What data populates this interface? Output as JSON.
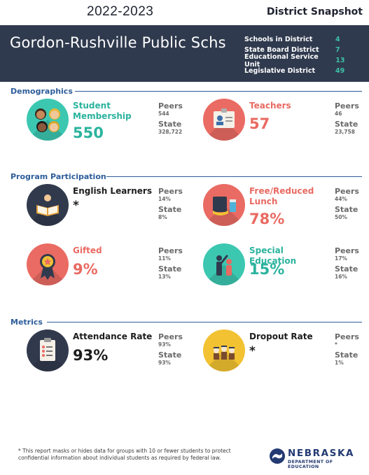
{
  "header": {
    "year": "2022-2023",
    "snapshot_label": "District Snapshot"
  },
  "district": {
    "name": "Gordon-Rushville Public Schs",
    "info": [
      {
        "label": "Schools in District",
        "value": "4"
      },
      {
        "label": "State Board District",
        "value": "7"
      },
      {
        "label": "Educational Service Unit",
        "value": "13"
      },
      {
        "label": "Legislative District",
        "value": "49"
      }
    ]
  },
  "sections": {
    "demographics": "Demographics",
    "program": "Program Participation",
    "metrics": "Metrics"
  },
  "metrics": {
    "student_membership": {
      "title": "Student Membership",
      "value": "550",
      "peers_label": "Peers",
      "peers": "544",
      "state_label": "State",
      "state": "328,722"
    },
    "teachers": {
      "title": "Teachers",
      "value": "57",
      "peers_label": "Peers",
      "peers": "46",
      "state_label": "State",
      "state": "23,758"
    },
    "english_learners": {
      "title": "English Learners",
      "value": "*",
      "peers_label": "Peers",
      "peers": "14%",
      "state_label": "State",
      "state": "8%"
    },
    "free_reduced_lunch": {
      "title": "Free/Reduced Lunch",
      "value": "78%",
      "peers_label": "Peers",
      "peers": "44%",
      "state_label": "State",
      "state": "50%"
    },
    "gifted": {
      "title": "Gifted",
      "value": "9%",
      "peers_label": "Peers",
      "peers": "11%",
      "state_label": "State",
      "state": "13%"
    },
    "special_education": {
      "title": "Special Education",
      "value": "15%",
      "peers_label": "Peers",
      "peers": "17%",
      "state_label": "State",
      "state": "16%"
    },
    "attendance_rate": {
      "title": "Attendance Rate",
      "value": "93%",
      "peers_label": "Peers",
      "peers": "93%",
      "state_label": "State",
      "state": "93%"
    },
    "dropout_rate": {
      "title": "Dropout Rate",
      "value": "*",
      "peers_label": "Peers",
      "peers": "*",
      "state_label": "State",
      "state": "1%"
    }
  },
  "icons": {
    "student_membership": "students-icon",
    "teachers": "id-badge-icon",
    "english_learners": "open-book-icon",
    "free_reduced_lunch": "lunch-tray-icon",
    "gifted": "award-ribbon-icon",
    "special_education": "helping-hand-icon",
    "attendance_rate": "clipboard-checklist-icon",
    "dropout_rate": "graduates-icon"
  },
  "colors": {
    "teal": "#2bb39e",
    "coral": "#e96a62",
    "navy": "#303a4e",
    "section_blue": "#2d5d9a"
  },
  "footer": {
    "note": "* This report masks or hides data for groups with 10 or fewer students to protect confidential information about individual students as required by federal law.",
    "logo_word": "NEBRASKA",
    "logo_sub": "DEPARTMENT OF EDUCATION"
  }
}
